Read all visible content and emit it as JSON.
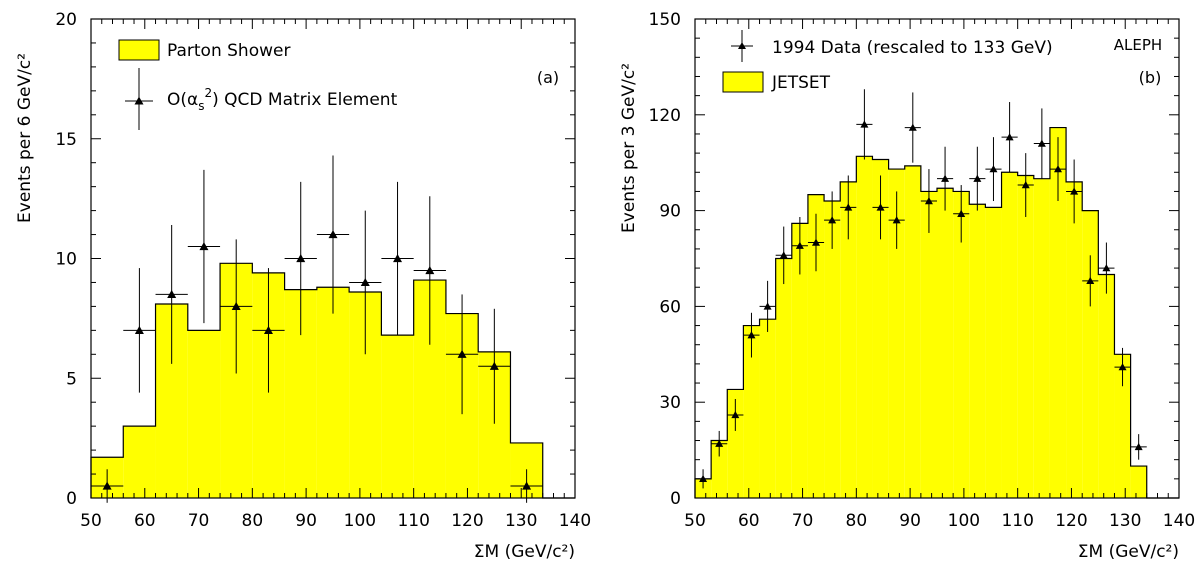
{
  "colors": {
    "fill": "#ffff00",
    "ink": "#000000",
    "background": "#ffffff"
  },
  "chart_data": [
    {
      "type": "bar",
      "panel_label": "(a)",
      "ylabel": "Events per 6 GeV/c²",
      "xlabel": "ΣM (GeV/c²)",
      "xlim": [
        50,
        140
      ],
      "ylim": [
        0,
        20
      ],
      "xticks": [
        50,
        60,
        70,
        80,
        90,
        100,
        110,
        120,
        130,
        140
      ],
      "yticks": [
        0,
        5,
        10,
        15,
        20
      ],
      "legend": {
        "placement": "top-left",
        "histogram_label": "Parton Shower",
        "points_label_prefix": "O(α",
        "points_label_sub": "s",
        "points_label_sup": "2",
        "points_label_suffix": ") QCD Matrix Element"
      },
      "histogram": {
        "name": "Parton Shower",
        "edges": [
          50,
          56,
          62,
          68,
          74,
          80,
          86,
          92,
          98,
          104,
          110,
          116,
          122,
          128,
          134
        ],
        "values": [
          1.7,
          3.0,
          8.1,
          7.0,
          9.8,
          9.4,
          8.7,
          8.8,
          8.6,
          6.8,
          9.1,
          7.7,
          6.1,
          2.3
        ]
      },
      "points": {
        "name": "O(αs²) QCD Matrix Element",
        "x": [
          53,
          59,
          65,
          71,
          77,
          83,
          89,
          95,
          101,
          107,
          113,
          119,
          125,
          131
        ],
        "y": [
          0.5,
          7.0,
          8.5,
          10.5,
          8.0,
          7.0,
          10.0,
          11.0,
          9.0,
          10.0,
          9.5,
          6.0,
          5.5,
          0.5
        ],
        "yerr": [
          0.7,
          2.6,
          2.9,
          3.2,
          2.8,
          2.6,
          3.2,
          3.3,
          3.0,
          3.2,
          3.1,
          2.5,
          2.4,
          0.7
        ],
        "xhalf": 3
      }
    },
    {
      "type": "bar",
      "panel_label": "(b)",
      "experiment_label": "ALEPH",
      "ylabel": "Events per 3 GeV/c²",
      "xlabel": "ΣM (GeV/c²)",
      "xlim": [
        50,
        140
      ],
      "ylim": [
        0,
        150
      ],
      "xticks": [
        50,
        60,
        70,
        80,
        90,
        100,
        110,
        120,
        130,
        140
      ],
      "yticks": [
        0,
        30,
        60,
        90,
        120,
        150
      ],
      "legend": {
        "placement": "top-left",
        "points_label": "1994 Data (rescaled to 133 GeV)",
        "histogram_label": "JETSET"
      },
      "histogram": {
        "name": "JETSET",
        "edges": [
          50,
          53,
          56,
          59,
          62,
          65,
          68,
          71,
          74,
          77,
          80,
          83,
          86,
          89,
          92,
          95,
          98,
          101,
          104,
          107,
          110,
          113,
          116,
          119,
          122,
          125,
          128,
          131,
          134
        ],
        "values": [
          6,
          18,
          34,
          54,
          56,
          75,
          86,
          95,
          93,
          99,
          107,
          106,
          103,
          104,
          96,
          97,
          96,
          92,
          91,
          102,
          101,
          100,
          116,
          99,
          90,
          70,
          45,
          10
        ]
      },
      "points": {
        "name": "1994 Data (rescaled to 133 GeV)",
        "x": [
          51.5,
          54.5,
          57.5,
          60.5,
          63.5,
          66.5,
          69.5,
          72.5,
          75.5,
          78.5,
          81.5,
          84.5,
          87.5,
          90.5,
          93.5,
          96.5,
          99.5,
          102.5,
          105.5,
          108.5,
          111.5,
          114.5,
          117.5,
          120.5,
          123.5,
          126.5,
          129.5,
          132.5
        ],
        "y": [
          6,
          17,
          26,
          51,
          60,
          76,
          79,
          80,
          87,
          91,
          117,
          91,
          87,
          116,
          93,
          100,
          89,
          100,
          103,
          113,
          98,
          111,
          103,
          96,
          68,
          72,
          41,
          16
        ],
        "yerr": [
          3,
          4,
          5,
          7,
          8,
          9,
          9,
          9,
          9,
          10,
          11,
          10,
          9,
          11,
          10,
          10,
          9,
          10,
          10,
          11,
          10,
          11,
          10,
          10,
          8,
          8,
          6,
          4
        ],
        "xhalf": 1.5
      }
    }
  ]
}
